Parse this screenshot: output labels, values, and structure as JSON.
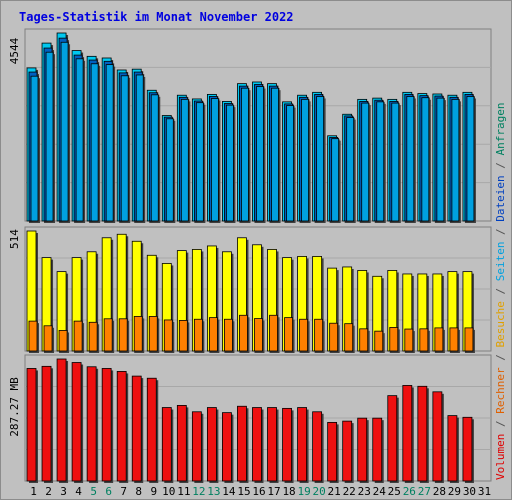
{
  "title": "Tages-Statistik im Monat November 2022",
  "colors": {
    "background": "#c0c0c0",
    "panel": "#c0c0c0",
    "grid": "#a8a8a8",
    "anfragen": "#00c8f0",
    "dateien": "#0060c0",
    "seiten": "#00a0e0",
    "besuche": "#ffff00",
    "rechner": "#ff8000",
    "volumen": "#ee1010",
    "weekday_label": "#000000",
    "weekend_label": "#008060",
    "title": "#0000e0"
  },
  "legend": {
    "right_upper": [
      "Anfragen",
      "/",
      "Dateien",
      "/",
      "Seiten",
      "/",
      "Besuche",
      "/",
      "Rechner",
      "/",
      "Volumen"
    ],
    "colors": [
      "#008060",
      "#555555",
      "#0040c0",
      "#555555",
      "#00a0e0",
      "#555555",
      "#e0a000",
      "#555555",
      "#e06000",
      "#555555",
      "#e00000"
    ]
  },
  "chart_data": {
    "type": "bar",
    "title": "Tages-Statistik im Monat November 2022",
    "categories": [
      "1",
      "2",
      "3",
      "4",
      "5",
      "6",
      "7",
      "8",
      "9",
      "10",
      "11",
      "12",
      "13",
      "14",
      "15",
      "16",
      "17",
      "18",
      "19",
      "20",
      "21",
      "22",
      "23",
      "24",
      "25",
      "26",
      "27",
      "28",
      "29",
      "30",
      "31"
    ],
    "weekend_days": [
      "5",
      "6",
      "12",
      "13",
      "19",
      "20",
      "26",
      "27"
    ],
    "panels": [
      {
        "name": "top",
        "ymax_label": "4544",
        "ymax": 4544,
        "series": [
          {
            "name": "Anfragen",
            "values": [
              3700,
              4300,
              4544,
              4120,
              3980,
              3940,
              3650,
              3670,
              3160,
              2550,
              3040,
              2950,
              3060,
              2890,
              3320,
              3360,
              3320,
              2880,
              3040,
              3110,
              2060,
              2580,
              2940,
              2970,
              2940,
              3110,
              3080,
              3070,
              3040,
              3110,
              0
            ]
          },
          {
            "name": "Dateien",
            "values": [
              3600,
              4180,
              4420,
              4010,
              3890,
              3860,
              3580,
              3600,
              3100,
              2510,
              2990,
              2900,
              3010,
              2840,
              3260,
              3300,
              3260,
              2830,
              2990,
              3060,
              2020,
              2540,
              2890,
              2920,
              2890,
              3060,
              3030,
              3020,
              2990,
              3060,
              0
            ]
          },
          {
            "name": "Seiten",
            "values": [
              3500,
              4080,
              4320,
              3920,
              3800,
              3780,
              3510,
              3530,
              3050,
              2470,
              2940,
              2860,
              2960,
              2800,
              3210,
              3250,
              3210,
              2790,
              2940,
              3010,
              1990,
              2500,
              2850,
              2880,
              2850,
              3010,
              2980,
              2970,
              2940,
              3010,
              0
            ]
          }
        ]
      },
      {
        "name": "middle",
        "ymax_label": "514",
        "ymax": 514,
        "series": [
          {
            "name": "Besuche",
            "values": [
              514,
              400,
              340,
              400,
              425,
              485,
              500,
              470,
              410,
              375,
              430,
              435,
              450,
              425,
              485,
              455,
              435,
              400,
              405,
              405,
              355,
              360,
              345,
              320,
              345,
              330,
              330,
              330,
              340,
              340,
              0
            ]
          },
          {
            "name": "Rechner",
            "values": [
              128,
              108,
              88,
              128,
              123,
              138,
              138,
              148,
              148,
              133,
              131,
              136,
              143,
              136,
              153,
              139,
              153,
              143,
              136,
              136,
              119,
              117,
              95,
              85,
              101,
              94,
              95,
              99,
              99,
              99,
              0
            ]
          }
        ]
      },
      {
        "name": "bottom",
        "ymax_label": "287.27 MB",
        "ymax": 287.27,
        "series": [
          {
            "name": "Volumen",
            "values": [
              265,
              270,
              287.27,
              279,
              269,
              265,
              258,
              247,
              242,
              173,
              178,
              163,
              173,
              161,
              176,
              173,
              173,
              171,
              173,
              163,
              138,
              141,
              148,
              148,
              201,
              225,
              223,
              210,
              154,
              150,
              0
            ]
          }
        ]
      }
    ]
  }
}
